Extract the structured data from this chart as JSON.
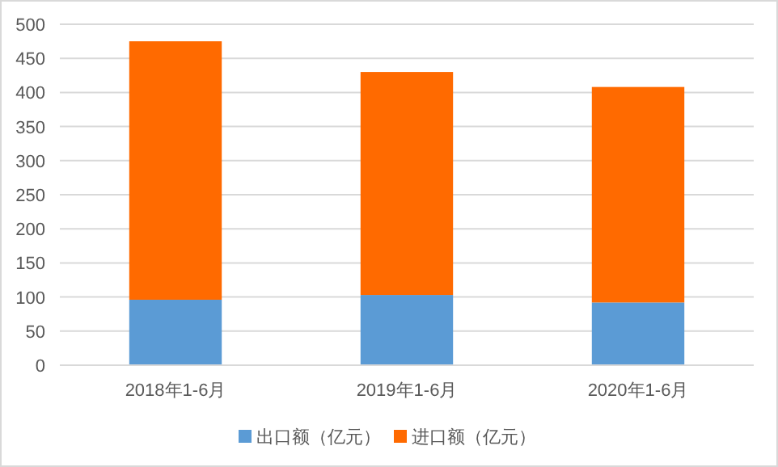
{
  "chart_data": {
    "type": "bar",
    "stacked": true,
    "categories": [
      "2018年1-6月",
      "2019年1-6月",
      "2020年1-6月"
    ],
    "series": [
      {
        "name": "出口额（亿元）",
        "color": "#5b9bd5",
        "values": [
          96,
          103,
          92
        ]
      },
      {
        "name": "进口额（亿元）",
        "color": "#ff6a00",
        "values": [
          379,
          327,
          316
        ]
      }
    ],
    "ylim": [
      0,
      500
    ],
    "yticks": [
      0,
      50,
      100,
      150,
      200,
      250,
      300,
      350,
      400,
      450,
      500
    ],
    "grid": "y",
    "legend": "bottom"
  }
}
